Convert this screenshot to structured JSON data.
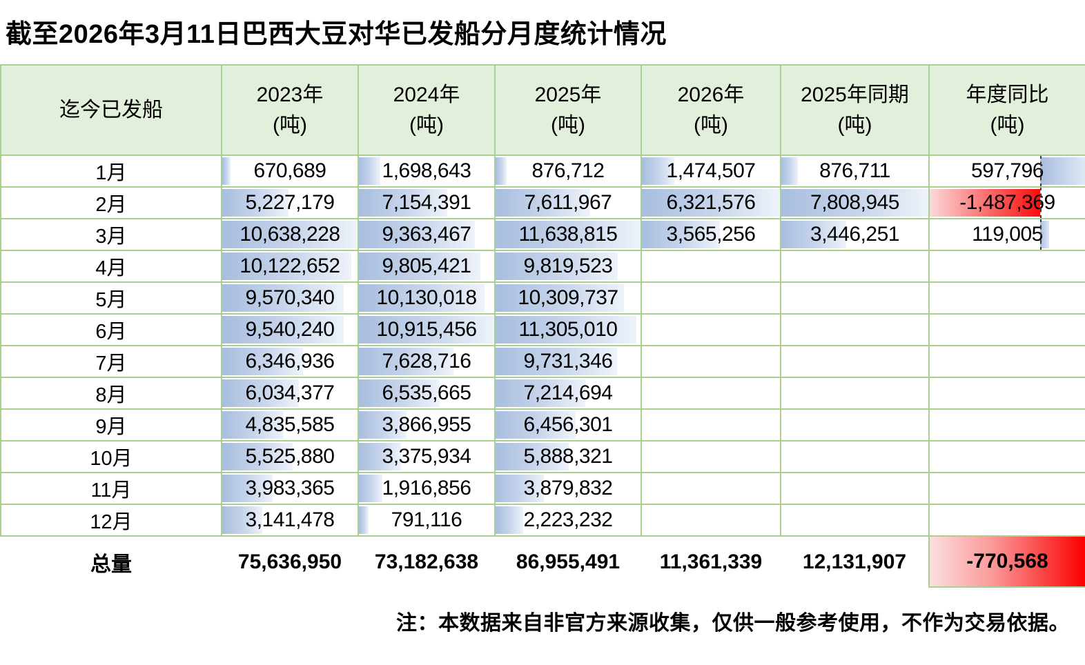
{
  "title": "截至2026年3月11日巴西大豆对华已发船分月度统计情况",
  "footnote": "注：本数据来自非官方来源收集，仅供一般参考使用，不作为交易依据。",
  "colors": {
    "header_bg": "#e2efda",
    "grid_border": "#a9d08e",
    "bar_blue": "#a8bede",
    "bar_negative_red": "#fb0b0b",
    "total_negative_fill": "#fb0000"
  },
  "table": {
    "corner_label": "迄今已发船",
    "unit_label": "(吨)",
    "total_label": "总量"
  },
  "chart_data": {
    "type": "table",
    "title": "截至2026年3月11日巴西大豆对华已发船分月度统计情况",
    "categories": [
      "1月",
      "2月",
      "3月",
      "4月",
      "5月",
      "6月",
      "7月",
      "8月",
      "9月",
      "10月",
      "11月",
      "12月"
    ],
    "unit": "吨",
    "series": [
      {
        "name": "2023年",
        "values": [
          670689,
          5227179,
          10638228,
          10122652,
          9570340,
          9540240,
          6346936,
          6034377,
          4835585,
          5525880,
          3983365,
          3141478
        ],
        "total": 75636950,
        "style": "databar-blue"
      },
      {
        "name": "2024年",
        "values": [
          1698643,
          7154391,
          9363467,
          9805421,
          10130018,
          10915456,
          7628716,
          6535665,
          3866955,
          3375934,
          1916856,
          791116
        ],
        "total": 73182638,
        "style": "databar-blue"
      },
      {
        "name": "2025年",
        "values": [
          876712,
          7611967,
          11638815,
          9819523,
          10309737,
          11305010,
          9731346,
          7214694,
          6456301,
          5888321,
          3879832,
          2223232
        ],
        "total": 86955491,
        "style": "databar-blue"
      },
      {
        "name": "2026年",
        "values": [
          1474507,
          6321576,
          3565256
        ],
        "total": 11361339,
        "style": "databar-blue"
      },
      {
        "name": "2025年同期",
        "values": [
          876711,
          7808945,
          3446251
        ],
        "total": 12131907,
        "style": "databar-blue"
      },
      {
        "name": "年度同比",
        "values": [
          597796,
          -1487369,
          119005
        ],
        "total": -770568,
        "style": "databar-diverging",
        "total_style": "red-fill"
      }
    ],
    "notes": "注：本数据来自非官方来源收集，仅供一般参考使用，不作为交易依据。"
  }
}
